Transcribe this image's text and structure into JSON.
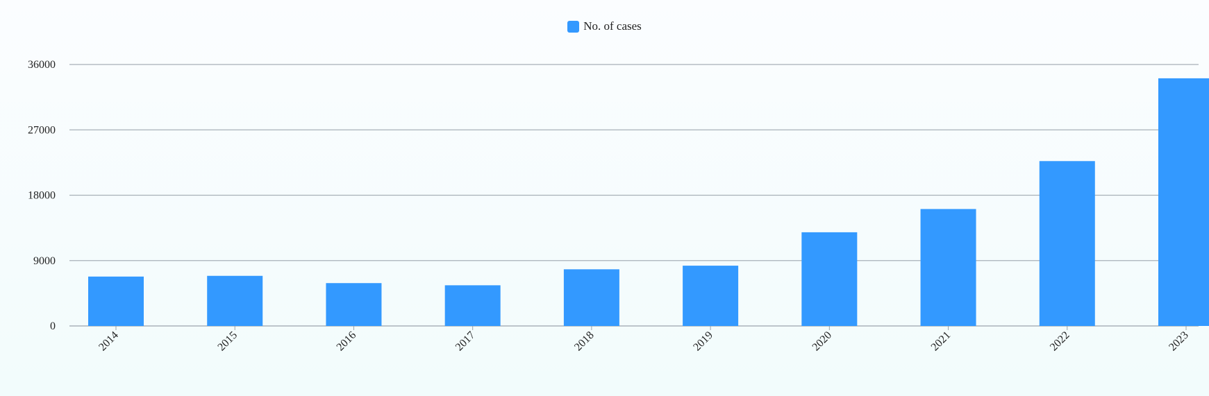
{
  "chart_data": {
    "type": "bar",
    "categories": [
      "2014",
      "2015",
      "2016",
      "2017",
      "2018",
      "2019",
      "2020",
      "2021",
      "2022",
      "2023"
    ],
    "series": [
      {
        "name": "No. of cases",
        "values": [
          6800,
          6900,
          5900,
          5600,
          7800,
          8300,
          12900,
          16100,
          22700,
          34100
        ],
        "color": "#3399ff"
      }
    ],
    "yticks": [
      "0",
      "9000",
      "18000",
      "27000",
      "36000"
    ],
    "ylim": [
      0,
      36000
    ],
    "grid": true,
    "legend_position": "top-center"
  }
}
